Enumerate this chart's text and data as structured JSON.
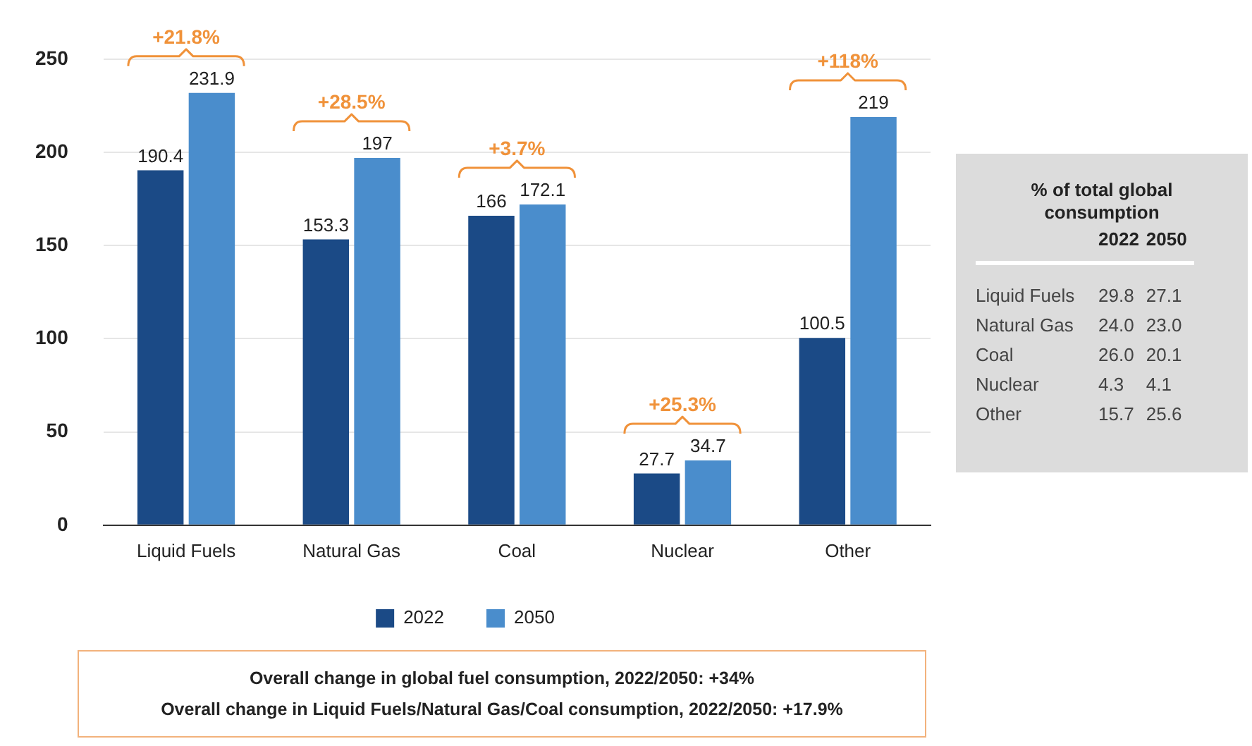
{
  "chart_data": [
    {
      "type": "bar",
      "categories": [
        "Liquid Fuels",
        "Natural Gas",
        "Coal",
        "Nuclear",
        "Other"
      ],
      "series": [
        {
          "name": "2022",
          "color": "#1b4a86",
          "values": [
            190.4,
            153.3,
            166,
            27.7,
            100.5
          ]
        },
        {
          "name": "2050",
          "color": "#4a8dcc",
          "values": [
            231.9,
            197,
            172.1,
            34.7,
            219
          ]
        }
      ],
      "ylim": [
        0,
        250
      ],
      "yticks": [
        0,
        50,
        100,
        150,
        200,
        250
      ],
      "grid": "y",
      "legend": "bottom",
      "data_labels": true,
      "annotations": [
        {
          "text": "+21.8%",
          "x": "Liquid Fuels",
          "y": 231.9
        },
        {
          "text": "+28.5%",
          "x": "Natural Gas",
          "y": 197
        },
        {
          "text": "+3.7%",
          "x": "Coal",
          "y": 172.1
        },
        {
          "text": "+25.3%",
          "x": "Nuclear",
          "y": 34.7
        },
        {
          "text": "+118%",
          "x": "Other",
          "y": 219
        },
        "Overall change in global fuel consumption, 2022/2050: +34%",
        "Overall change in Liquid Fuels/Natural Gas/Coal consumption, 2022/2050: +17.9%"
      ]
    },
    {
      "type": "other",
      "title": "% of total global consumption",
      "categories": [
        "Liquid Fuels",
        "Natural Gas",
        "Coal",
        "Nuclear",
        "Other"
      ],
      "series": [
        {
          "name": "2022",
          "values": [
            29.8,
            24.0,
            26.0,
            4.3,
            15.7
          ],
          "value_labels": [
            "29.8",
            "24.0",
            "26.0",
            "4.3",
            "15.7"
          ]
        },
        {
          "name": "2050",
          "values": [
            27.1,
            23.0,
            20.1,
            4.1,
            25.6
          ],
          "value_labels": [
            "27.1",
            "23.0",
            "20.1",
            "4.1",
            "25.6"
          ]
        }
      ]
    }
  ]
}
